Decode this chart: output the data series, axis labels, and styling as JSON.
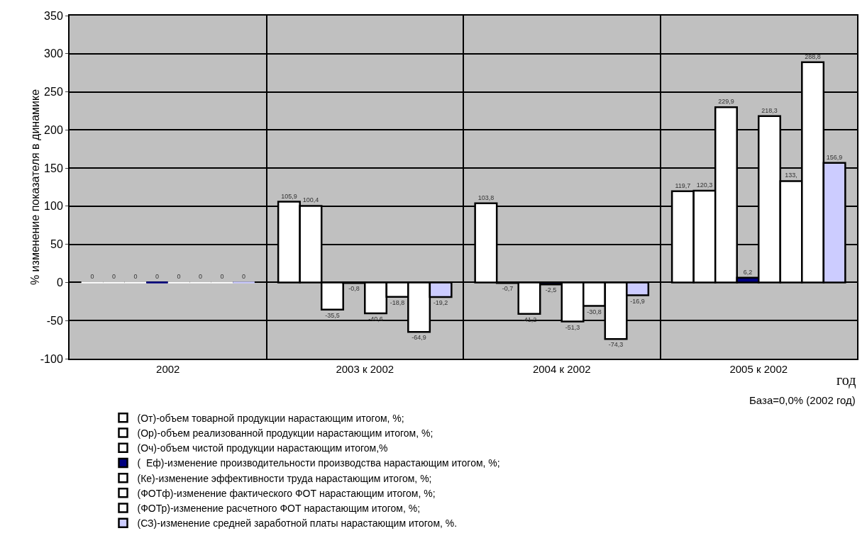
{
  "chart_data": {
    "type": "bar",
    "ylabel": "% изменение показателя в динамике",
    "categories": [
      "2002",
      "2003 к 2002",
      "2004 к 2002",
      "2005 к 2002"
    ],
    "series": [
      {
        "name": "(От)-объем товарной продукции нарастающим итогом, %;",
        "color": "#ffffff",
        "values": [
          0,
          105.9,
          103.8,
          119.7
        ],
        "value_labels": [
          "0",
          "105,9",
          "103,8",
          "119,7"
        ]
      },
      {
        "name": "(Ор)-объем реализованной продукции нарастающим итогом, %;",
        "color": "#ffffff",
        "values": [
          0,
          100.4,
          -0.7,
          120.3
        ],
        "value_labels": [
          "0",
          "100,4",
          "-0,7",
          "120,3"
        ]
      },
      {
        "name": "(Оч)-объем чистой продукции нарастающим итогом,%",
        "color": "#ffffff",
        "values": [
          0,
          -35.5,
          -41.2,
          229.9
        ],
        "value_labels": [
          "0",
          "-35,5",
          "-41,2",
          "229,9"
        ]
      },
      {
        "name": "(  Еф)-изменение производительности производства нарастающим итогом, %;",
        "color": "#000080",
        "values": [
          0,
          -0.8,
          -2.5,
          6.2
        ],
        "value_labels": [
          "0",
          "-0,8",
          "-2,5",
          "6,2"
        ]
      },
      {
        "name": "(Ке)-изменение эффективности труда нарастающим итогом, %;",
        "color": "#ffffff",
        "values": [
          0,
          -40.6,
          -51.3,
          218.3
        ],
        "value_labels": [
          "0",
          "-40,6",
          "-51,3",
          "218,3"
        ]
      },
      {
        "name": "(ФОТф)-изменение фактического ФОТ нарастающим итогом, %;",
        "color": "#ffffff",
        "values": [
          0,
          -18.8,
          -30.8,
          133
        ],
        "value_labels": [
          "0",
          "-18,8",
          "-30,8",
          "133,"
        ]
      },
      {
        "name": "(ФОТр)-изменение расчетного ФОТ нарастающим итогом, %;",
        "color": "#ffffff",
        "values": [
          0,
          -64.9,
          -74.3,
          288.8
        ],
        "value_labels": [
          "0",
          "-64,9",
          "-74,3",
          "288,8"
        ]
      },
      {
        "name": "(СЗ)-изменение средней заработной платы нарастающим итогом, %.",
        "color": "#ccccff",
        "values": [
          0,
          -19.2,
          -16.9,
          156.9
        ],
        "value_labels": [
          "0",
          "-19,2",
          "-16,9",
          "156,9"
        ]
      }
    ],
    "ylim": [
      -100,
      350
    ],
    "yticks": [
      -100,
      -50,
      0,
      50,
      100,
      150,
      200,
      250,
      300,
      350
    ],
    "grid": true,
    "legend": "bottom",
    "annotations": [
      "год",
      "База=0,0% (2002 год)"
    ]
  }
}
